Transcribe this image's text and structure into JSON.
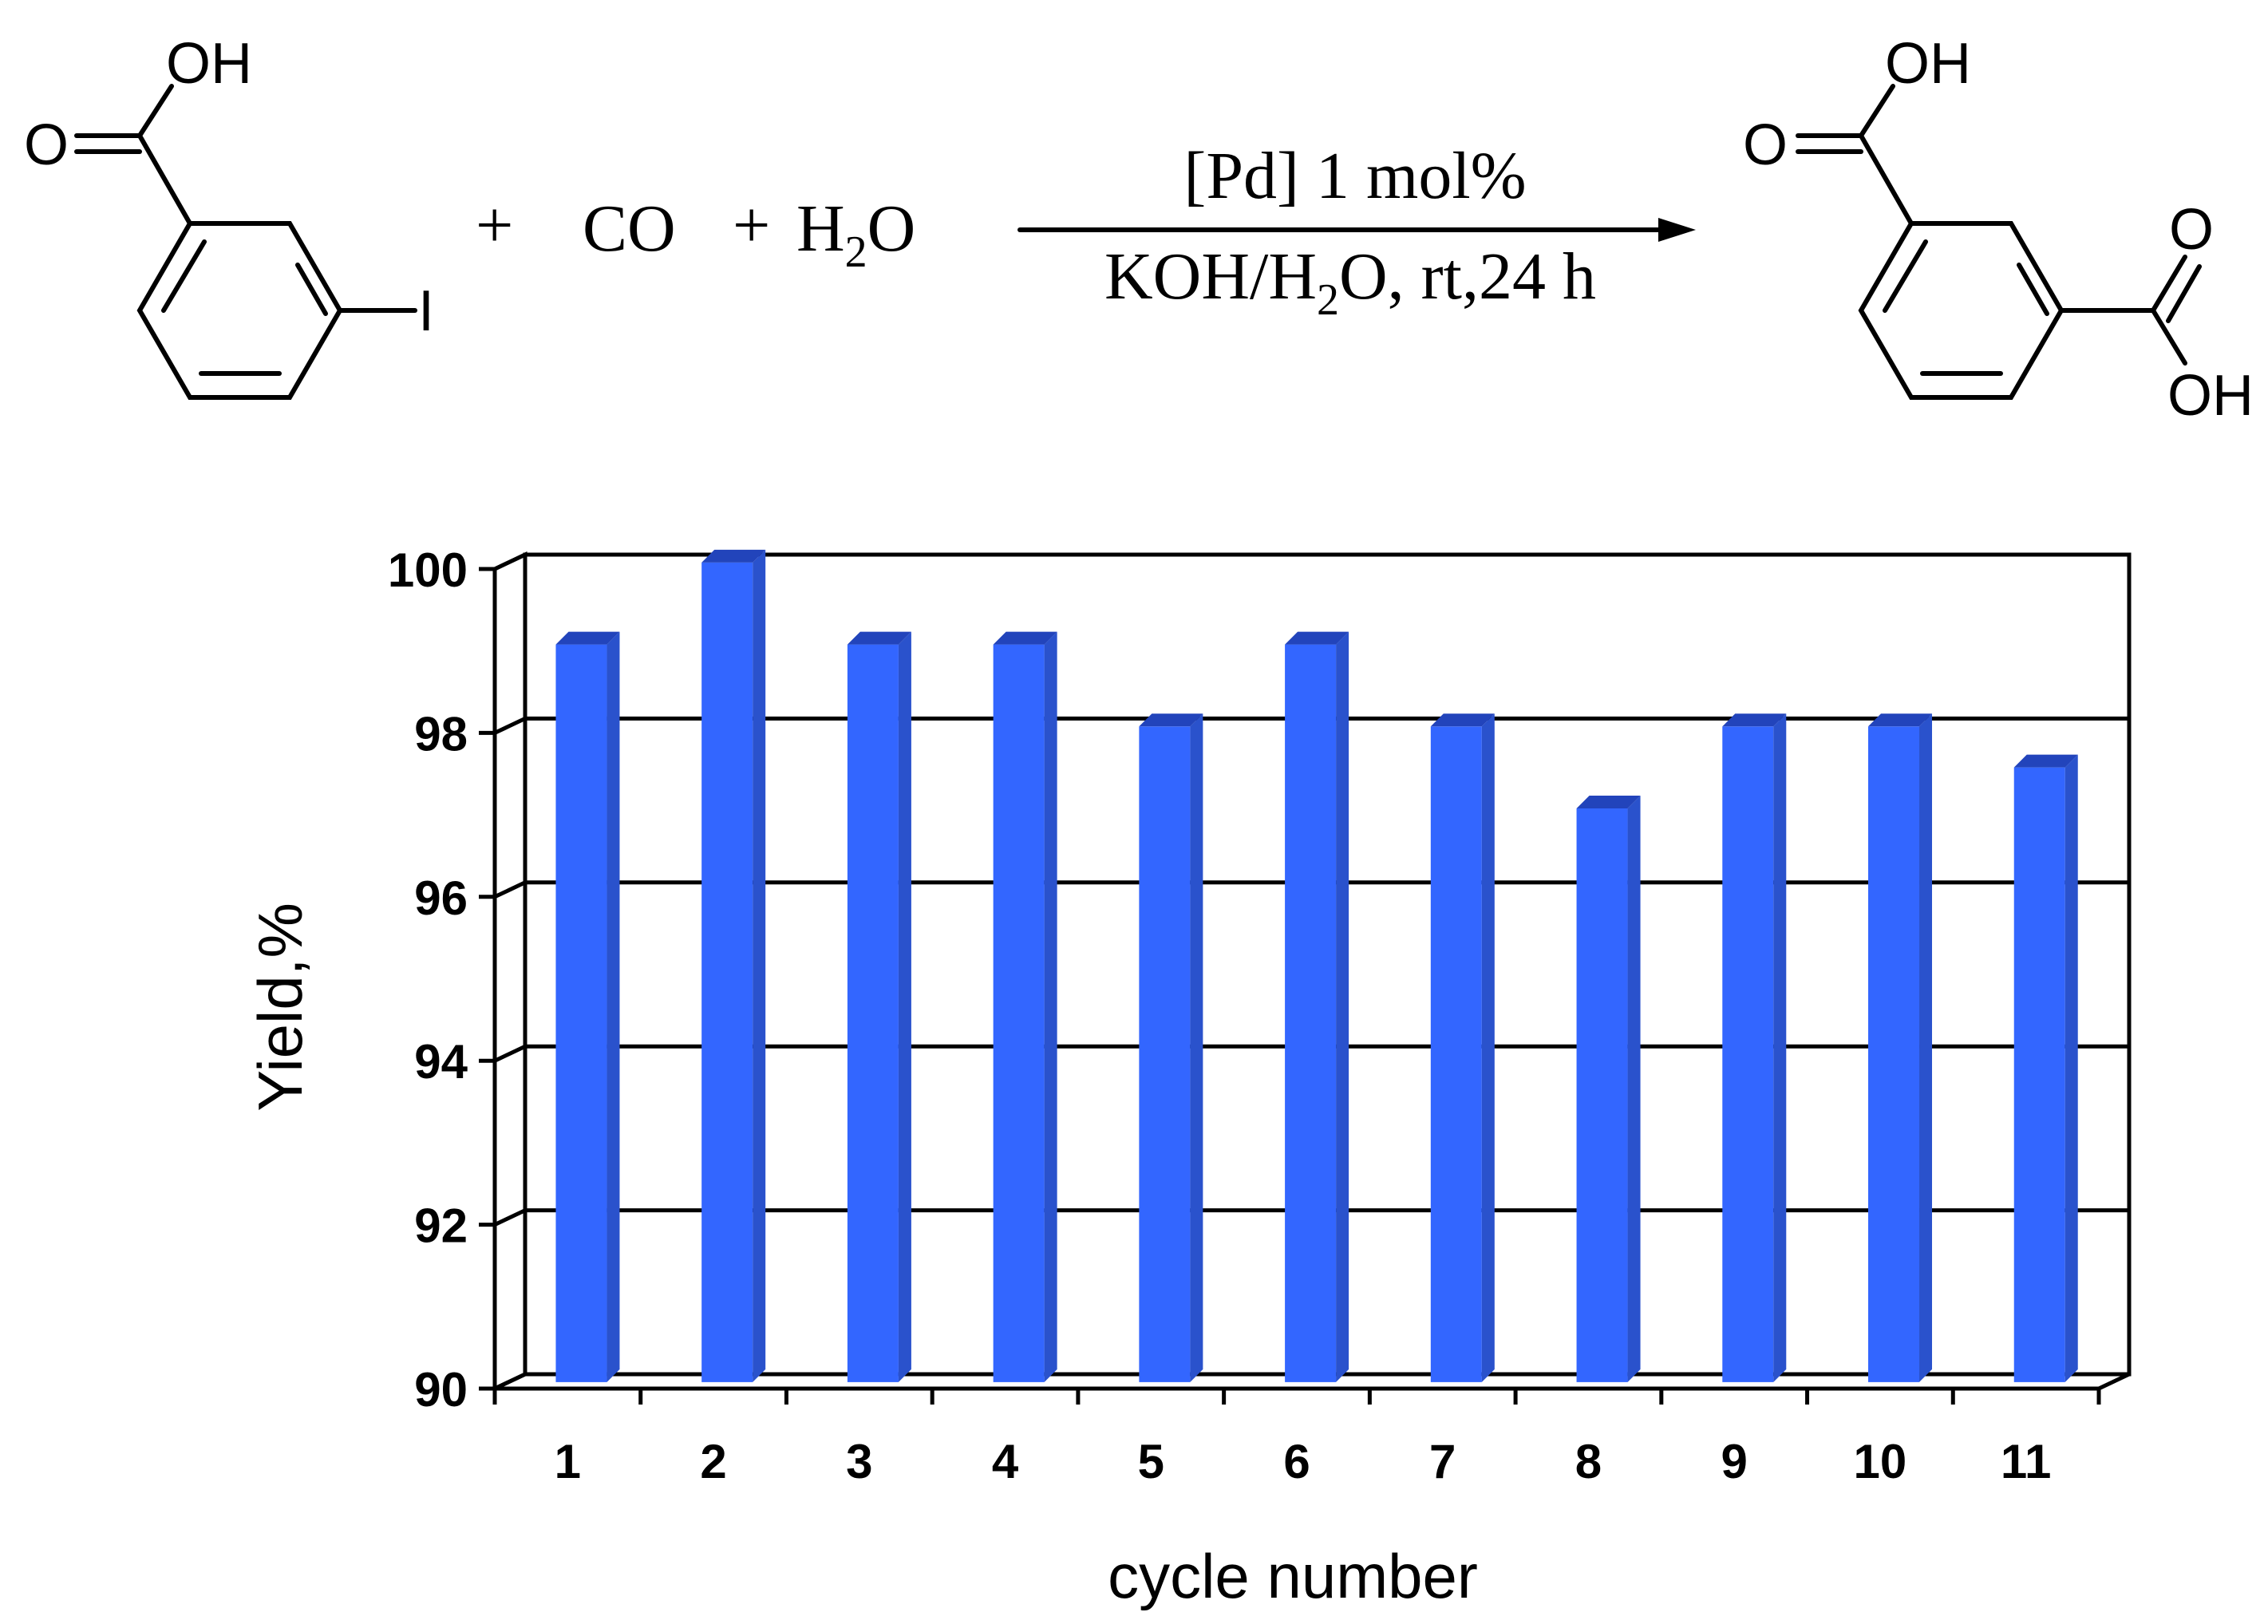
{
  "scheme": {
    "reactant": {
      "oh": "OH",
      "o": "O",
      "iodo": "I"
    },
    "plus_1": "+",
    "co": "CO",
    "plus_2": "+",
    "water_h": "H",
    "water_sub": "2",
    "water_o": "O",
    "conditions_top": "[Pd] 1 mol%",
    "conditions_bottom_a": "KOH/H",
    "conditions_bottom_sub": "2",
    "conditions_bottom_b": "O, rt,24 h",
    "product": {
      "oh_top": "OH",
      "o_top": "O",
      "o_right": "O",
      "oh_right": "OH"
    }
  },
  "chart_data": {
    "type": "bar",
    "categories": [
      "1",
      "2",
      "3",
      "4",
      "5",
      "6",
      "7",
      "8",
      "9",
      "10",
      "11"
    ],
    "values": [
      99,
      100,
      99,
      99,
      98,
      99,
      98,
      97,
      98,
      98,
      97.5
    ],
    "xlabel": "cycle number",
    "ylabel": "Yield,%",
    "ylim": [
      90,
      100
    ],
    "yticks": [
      "90",
      "92",
      "94",
      "96",
      "98",
      "100"
    ],
    "grid": true,
    "bar_color": "#3366ff"
  }
}
